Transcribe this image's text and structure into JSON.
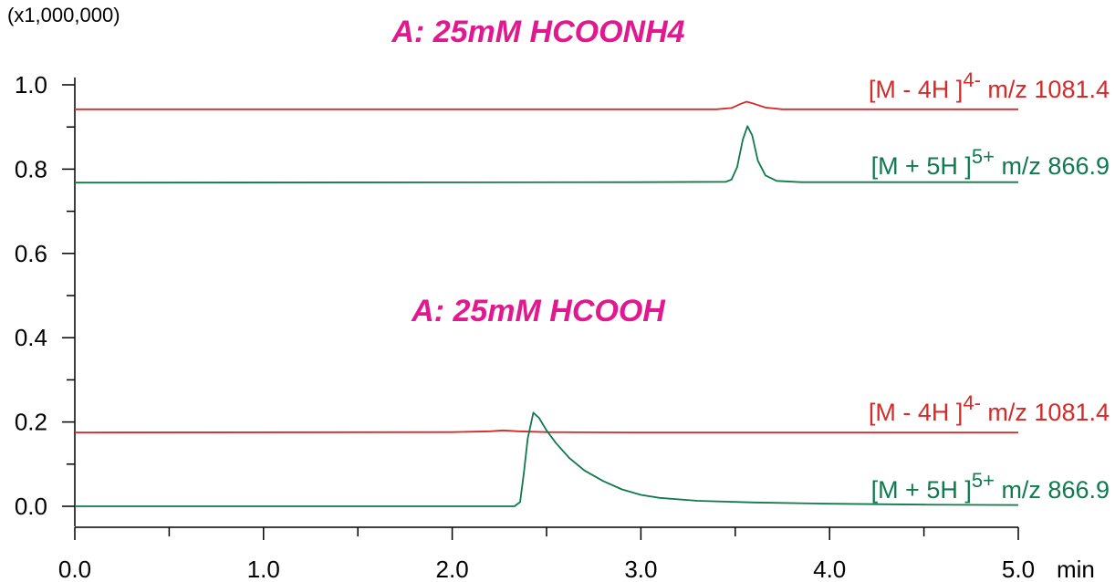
{
  "chart_data": {
    "type": "line",
    "y_multiplier_label": "(x1,000,000)",
    "x_unit_label": "min",
    "xlim": [
      0.0,
      5.0
    ],
    "ylim": [
      0.0,
      1.0
    ],
    "x_ticks": [
      "0.0",
      "1.0",
      "2.0",
      "3.0",
      "4.0",
      "5.0"
    ],
    "y_ticks": [
      "0.0",
      "0.2",
      "0.4",
      "0.6",
      "0.8",
      "1.0"
    ],
    "x_minor_step": 0.5,
    "y_minor_step": 0.1,
    "colors": {
      "red": "#d42a2a",
      "green": "#0f7a4e",
      "magenta": "#e0198f",
      "axis": "#000000"
    },
    "panels": [
      {
        "title": "A: 25mM HCOONH4",
        "series": [
          {
            "label_main": "[M - 4H ]",
            "label_sup": "4-",
            "label_tail": " m/z 1081.4",
            "color": "red",
            "baseline": 0.942,
            "points": [
              [
                0.0,
                0.942
              ],
              [
                2.0,
                0.942
              ],
              [
                3.4,
                0.942
              ],
              [
                3.48,
                0.945
              ],
              [
                3.53,
                0.955
              ],
              [
                3.56,
                0.96
              ],
              [
                3.6,
                0.955
              ],
              [
                3.66,
                0.946
              ],
              [
                3.75,
                0.942
              ],
              [
                5.0,
                0.942
              ]
            ]
          },
          {
            "label_main": "[M + 5H ]",
            "label_sup": "5+",
            "label_tail": " m/z 866.9",
            "color": "green",
            "baseline": 0.768,
            "points": [
              [
                0.0,
                0.768
              ],
              [
                3.0,
                0.769
              ],
              [
                3.45,
                0.77
              ],
              [
                3.48,
                0.775
              ],
              [
                3.51,
                0.805
              ],
              [
                3.54,
                0.87
              ],
              [
                3.565,
                0.902
              ],
              [
                3.59,
                0.88
              ],
              [
                3.62,
                0.82
              ],
              [
                3.66,
                0.785
              ],
              [
                3.72,
                0.772
              ],
              [
                3.85,
                0.769
              ],
              [
                5.0,
                0.769
              ]
            ]
          }
        ]
      },
      {
        "title": "A: 25mM HCOOH",
        "series": [
          {
            "label_main": "[M - 4H ]",
            "label_sup": "4-",
            "label_tail": " m/z 1081.4",
            "color": "red",
            "baseline": 0.175,
            "points": [
              [
                0.0,
                0.175
              ],
              [
                2.0,
                0.176
              ],
              [
                2.2,
                0.178
              ],
              [
                2.27,
                0.18
              ],
              [
                2.35,
                0.178
              ],
              [
                2.5,
                0.176
              ],
              [
                3.0,
                0.175
              ],
              [
                5.0,
                0.175
              ]
            ]
          },
          {
            "label_main": "[M + 5H ]",
            "label_sup": "5+",
            "label_tail": " m/z 866.9",
            "color": "green",
            "baseline": 0.0,
            "points": [
              [
                0.0,
                0.0
              ],
              [
                2.33,
                0.0
              ],
              [
                2.36,
                0.01
              ],
              [
                2.38,
                0.08
              ],
              [
                2.4,
                0.16
              ],
              [
                2.43,
                0.222
              ],
              [
                2.46,
                0.21
              ],
              [
                2.5,
                0.18
              ],
              [
                2.55,
                0.15
              ],
              [
                2.62,
                0.115
              ],
              [
                2.7,
                0.085
              ],
              [
                2.8,
                0.06
              ],
              [
                2.9,
                0.04
              ],
              [
                3.0,
                0.027
              ],
              [
                3.1,
                0.02
              ],
              [
                3.3,
                0.013
              ],
              [
                3.6,
                0.009
              ],
              [
                4.0,
                0.006
              ],
              [
                4.5,
                0.004
              ],
              [
                5.0,
                0.003
              ]
            ]
          }
        ]
      }
    ]
  }
}
